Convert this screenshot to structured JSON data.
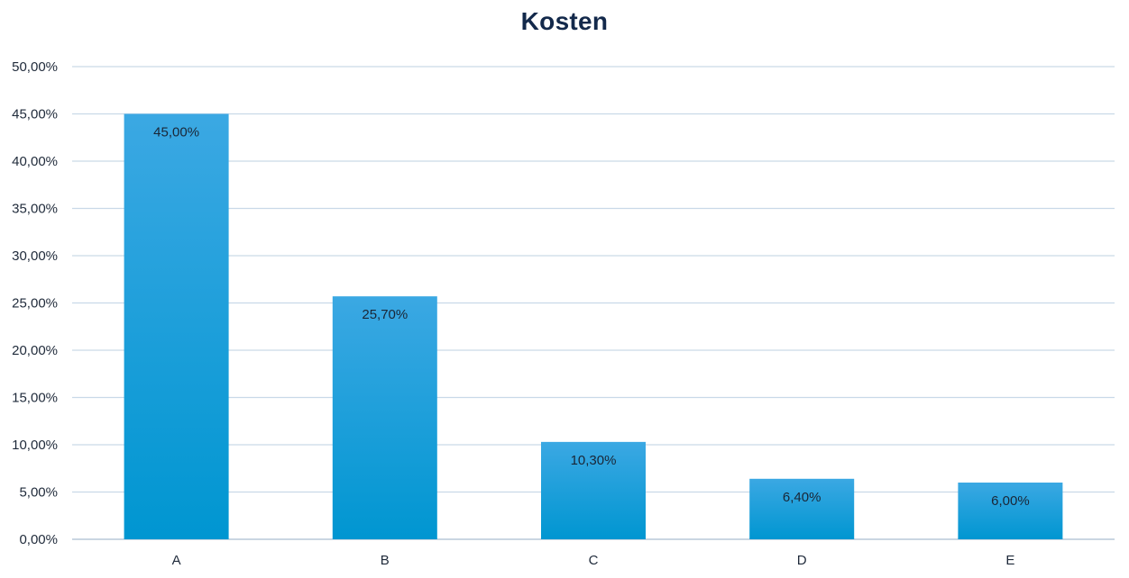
{
  "chart_data": {
    "type": "bar",
    "title": "Kosten",
    "xlabel": "",
    "ylabel": "",
    "categories": [
      "A",
      "B",
      "C",
      "D",
      "E"
    ],
    "values": [
      45.0,
      25.7,
      10.3,
      6.4,
      6.0
    ],
    "data_labels": [
      "45,00%",
      "25,70%",
      "10,30%",
      "6,40%",
      "6,00%"
    ],
    "y_ticks": [
      "0,00%",
      "5,00%",
      "10,00%",
      "15,00%",
      "20,00%",
      "25,00%",
      "30,00%",
      "35,00%",
      "40,00%",
      "45,00%",
      "50,00%"
    ],
    "ylim": [
      0,
      50
    ],
    "grid": true,
    "legend": "none",
    "colors": {
      "bar_top": "#3ba8e3",
      "bar_bottom": "#0096d1",
      "grid": "#c9d9e8",
      "title": "#13294b"
    }
  }
}
